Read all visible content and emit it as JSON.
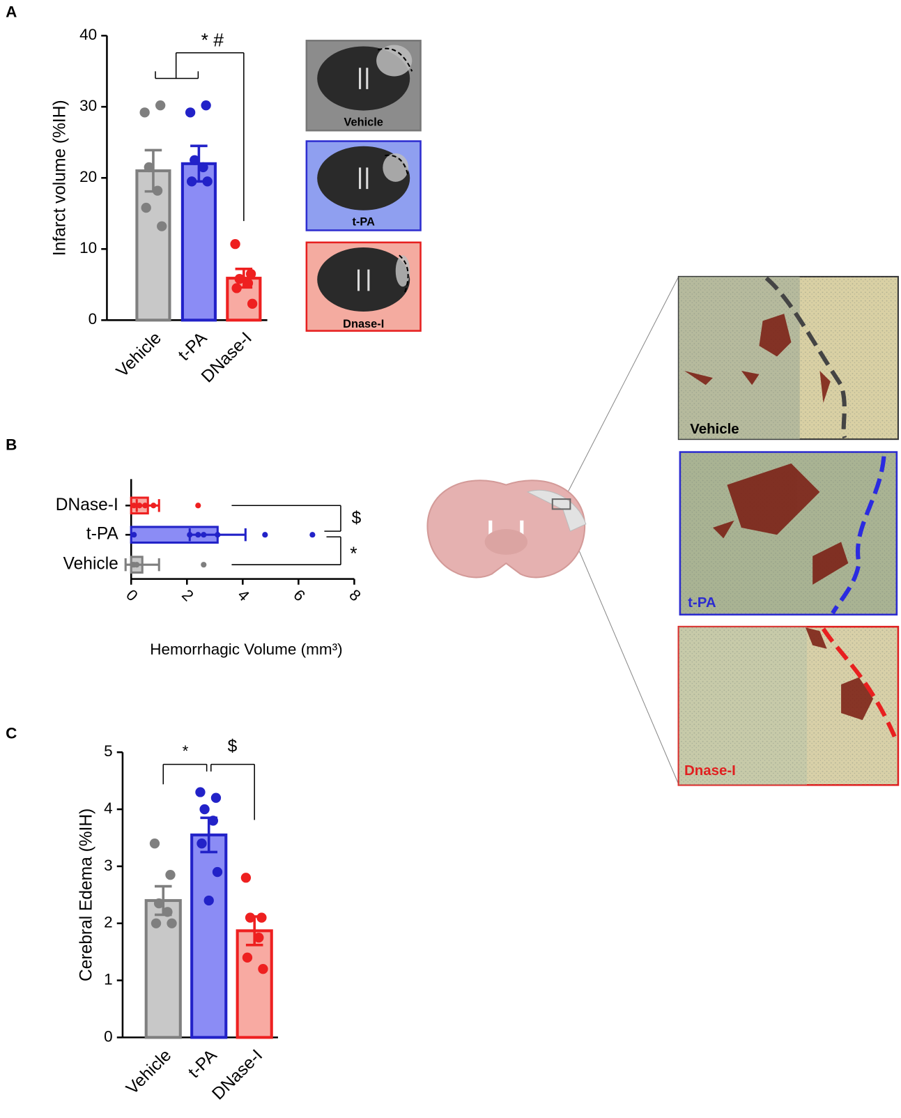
{
  "chart_data": [
    {
      "type": "bar",
      "panel": "A",
      "ylabel": "Infarct volume (%IH)",
      "categories": [
        "Vehicle",
        "t-PA",
        "DNase-I"
      ],
      "values": [
        21,
        22,
        5.9
      ],
      "errors": [
        2.9,
        2.5,
        1.3
      ],
      "points": [
        [
          29.2,
          30.2,
          21.5,
          18.2,
          15.8,
          13.2
        ],
        [
          29.2,
          30.2,
          22.5,
          21.5,
          19.5,
          19.5
        ],
        [
          10.7,
          6.5,
          5.8,
          5.2,
          4.5,
          2.3
        ]
      ],
      "colors": [
        "#c8c8c8",
        "#8b8cf5",
        "#f8aaa2"
      ],
      "edge_colors": [
        "#7f7f7f",
        "#2222c8",
        "#ee2020"
      ],
      "ylim": [
        0,
        40
      ],
      "yticks": [
        0,
        10,
        20,
        30,
        40
      ],
      "annotations": [
        "* #"
      ]
    },
    {
      "type": "hbar",
      "panel": "B",
      "xlabel": "Hemorrhagic Volume (mm³)",
      "categories": [
        "DNase-I",
        "t-PA",
        "Vehicle"
      ],
      "values": [
        0.6,
        3.1,
        0.4
      ],
      "errors": [
        0.4,
        1.0,
        0.6
      ],
      "points": [
        [
          0.1,
          0.3,
          0.5,
          0.8,
          2.4
        ],
        [
          0.1,
          2.1,
          2.4,
          2.6,
          3.1,
          4.8,
          6.5
        ],
        [
          0.05,
          0.1,
          0.2,
          2.6
        ]
      ],
      "colors": [
        "#f8aaa2",
        "#8b8cf5",
        "#c8c8c8"
      ],
      "edge_colors": [
        "#ee2020",
        "#2222c8",
        "#7f7f7f"
      ],
      "xlim": [
        0,
        8
      ],
      "xticks": [
        0,
        2,
        4,
        6,
        8
      ],
      "annotations": [
        "$",
        "*"
      ]
    },
    {
      "type": "bar",
      "panel": "C",
      "ylabel": "Cerebral Edema (%IH)",
      "categories": [
        "Vehicle",
        "t-PA",
        "DNase-I"
      ],
      "values": [
        2.4,
        3.55,
        1.87
      ],
      "errors": [
        0.25,
        0.3,
        0.25
      ],
      "points": [
        [
          3.4,
          2.85,
          2.35,
          2.2,
          2.0,
          2.0
        ],
        [
          4.3,
          4.2,
          4.0,
          3.8,
          3.4,
          2.9,
          2.4
        ],
        [
          2.8,
          2.1,
          2.1,
          1.75,
          1.4,
          1.2
        ]
      ],
      "colors": [
        "#c8c8c8",
        "#8b8cf5",
        "#f8aaa2"
      ],
      "edge_colors": [
        "#7f7f7f",
        "#2222c8",
        "#ee2020"
      ],
      "ylim": [
        0,
        5
      ],
      "yticks": [
        0,
        1,
        2,
        3,
        4,
        5
      ],
      "annotations": [
        "*",
        "$"
      ]
    }
  ],
  "mri_labels": [
    "Vehicle",
    "t-PA",
    "Dnase-I"
  ],
  "histology_labels": [
    "Vehicle",
    "t-PA",
    "Dnase-I"
  ]
}
